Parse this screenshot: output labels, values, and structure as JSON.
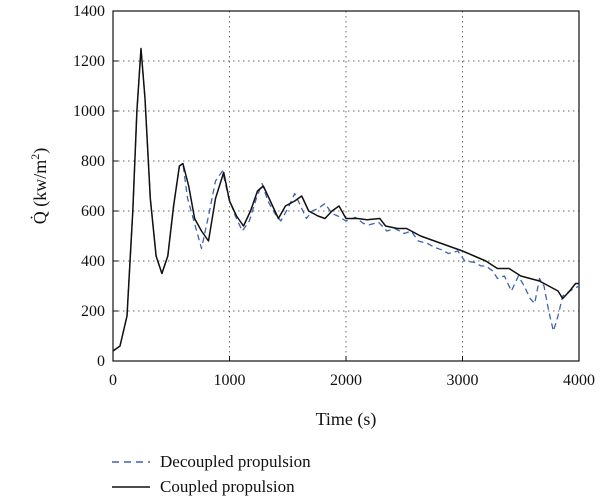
{
  "chart_data": {
    "type": "line",
    "xlabel": "Time (s)",
    "ylabel": {
      "main": "Q̇ (kw/m",
      "sup": "2",
      "close": ")"
    },
    "xlim": [
      0,
      4000
    ],
    "ylim": [
      0,
      1400
    ],
    "xticks": [
      0,
      1000,
      2000,
      3000,
      4000
    ],
    "yticks": [
      0,
      200,
      400,
      600,
      800,
      1000,
      1200,
      1400
    ],
    "grid": true,
    "legend_position": "bottom-outside",
    "series": [
      {
        "name": "Decoupled propulsion",
        "style": "dashed",
        "color": "#3f63b3",
        "points": [
          [
            0,
            40
          ],
          [
            60,
            60
          ],
          [
            120,
            180
          ],
          [
            170,
            600
          ],
          [
            205,
            1000
          ],
          [
            240,
            1250
          ],
          [
            275,
            1050
          ],
          [
            320,
            650
          ],
          [
            370,
            420
          ],
          [
            420,
            350
          ],
          [
            470,
            420
          ],
          [
            520,
            620
          ],
          [
            570,
            780
          ],
          [
            600,
            790
          ],
          [
            640,
            650
          ],
          [
            700,
            550
          ],
          [
            760,
            450
          ],
          [
            820,
            580
          ],
          [
            880,
            720
          ],
          [
            940,
            760
          ],
          [
            990,
            660
          ],
          [
            1050,
            580
          ],
          [
            1110,
            520
          ],
          [
            1170,
            560
          ],
          [
            1230,
            650
          ],
          [
            1280,
            710
          ],
          [
            1330,
            640
          ],
          [
            1390,
            590
          ],
          [
            1440,
            560
          ],
          [
            1500,
            610
          ],
          [
            1560,
            670
          ],
          [
            1610,
            620
          ],
          [
            1660,
            570
          ],
          [
            1710,
            600
          ],
          [
            1760,
            610
          ],
          [
            1820,
            630
          ],
          [
            1880,
            590
          ],
          [
            1930,
            580
          ],
          [
            2000,
            560
          ],
          [
            2080,
            575
          ],
          [
            2150,
            550
          ],
          [
            2200,
            545
          ],
          [
            2280,
            555
          ],
          [
            2350,
            520
          ],
          [
            2420,
            530
          ],
          [
            2500,
            510
          ],
          [
            2560,
            520
          ],
          [
            2620,
            480
          ],
          [
            2700,
            470
          ],
          [
            2760,
            455
          ],
          [
            2820,
            445
          ],
          [
            2880,
            430
          ],
          [
            2960,
            440
          ],
          [
            3020,
            400
          ],
          [
            3100,
            395
          ],
          [
            3160,
            380
          ],
          [
            3200,
            380
          ],
          [
            3260,
            360
          ],
          [
            3300,
            330
          ],
          [
            3360,
            340
          ],
          [
            3420,
            280
          ],
          [
            3480,
            340
          ],
          [
            3530,
            300
          ],
          [
            3580,
            250
          ],
          [
            3620,
            230
          ],
          [
            3660,
            330
          ],
          [
            3700,
            300
          ],
          [
            3740,
            200
          ],
          [
            3780,
            120
          ],
          [
            3820,
            180
          ],
          [
            3860,
            260
          ],
          [
            3920,
            280
          ],
          [
            4000,
            300
          ]
        ]
      },
      {
        "name": "Coupled propulsion",
        "style": "solid",
        "color": "#111111",
        "points": [
          [
            0,
            40
          ],
          [
            60,
            60
          ],
          [
            120,
            180
          ],
          [
            170,
            600
          ],
          [
            205,
            1000
          ],
          [
            240,
            1250
          ],
          [
            275,
            1050
          ],
          [
            320,
            650
          ],
          [
            370,
            420
          ],
          [
            420,
            350
          ],
          [
            470,
            420
          ],
          [
            520,
            620
          ],
          [
            570,
            780
          ],
          [
            600,
            790
          ],
          [
            650,
            700
          ],
          [
            700,
            570
          ],
          [
            760,
            520
          ],
          [
            820,
            480
          ],
          [
            880,
            650
          ],
          [
            950,
            755
          ],
          [
            1000,
            640
          ],
          [
            1060,
            580
          ],
          [
            1120,
            540
          ],
          [
            1180,
            600
          ],
          [
            1240,
            680
          ],
          [
            1290,
            700
          ],
          [
            1350,
            640
          ],
          [
            1420,
            570
          ],
          [
            1480,
            620
          ],
          [
            1560,
            640
          ],
          [
            1620,
            660
          ],
          [
            1680,
            600
          ],
          [
            1760,
            580
          ],
          [
            1820,
            570
          ],
          [
            1880,
            600
          ],
          [
            1940,
            620
          ],
          [
            2000,
            570
          ],
          [
            2100,
            570
          ],
          [
            2180,
            565
          ],
          [
            2290,
            570
          ],
          [
            2340,
            540
          ],
          [
            2440,
            530
          ],
          [
            2520,
            530
          ],
          [
            2640,
            500
          ],
          [
            2760,
            480
          ],
          [
            2880,
            460
          ],
          [
            3000,
            440
          ],
          [
            3100,
            420
          ],
          [
            3200,
            400
          ],
          [
            3300,
            370
          ],
          [
            3400,
            370
          ],
          [
            3500,
            340
          ],
          [
            3580,
            330
          ],
          [
            3660,
            320
          ],
          [
            3740,
            300
          ],
          [
            3820,
            280
          ],
          [
            3860,
            250
          ],
          [
            3920,
            280
          ],
          [
            3970,
            310
          ],
          [
            4000,
            310
          ]
        ]
      }
    ]
  }
}
